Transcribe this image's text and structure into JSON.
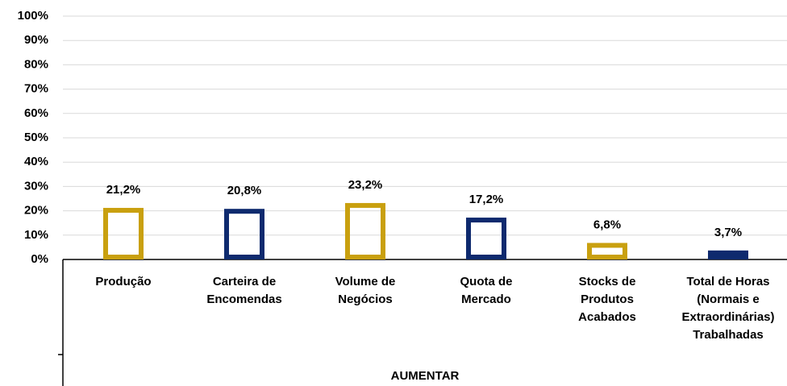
{
  "chart_data": {
    "type": "bar",
    "categories": [
      "Produção",
      "Carteira de\nEncomendas",
      "Volume de\nNegócios",
      "Quota de\nMercado",
      "Stocks de\nProdutos\nAcabados",
      "Total de Horas\n(Normais e\nExtraordinárias)\nTrabalhadas"
    ],
    "values": [
      21.2,
      20.8,
      23.2,
      17.2,
      6.8,
      3.7
    ],
    "value_labels": [
      "21,2%",
      "20,8%",
      "23,2%",
      "17,2%",
      "6,8%",
      "3,7%"
    ],
    "colors": [
      "#C9A00F",
      "#0E2A6E",
      "#C9A00F",
      "#0E2A6E",
      "#C9A00F",
      "#0E2A6E"
    ],
    "group_label": "AUMENTAR",
    "ylim": [
      0,
      100
    ],
    "yticks": [
      {
        "value": 0,
        "label": "0%"
      },
      {
        "value": 10,
        "label": "10%"
      },
      {
        "value": 20,
        "label": "20%"
      },
      {
        "value": 30,
        "label": "30%"
      },
      {
        "value": 40,
        "label": "40%"
      },
      {
        "value": 50,
        "label": "50%"
      },
      {
        "value": 60,
        "label": "60%"
      },
      {
        "value": 70,
        "label": "70%"
      },
      {
        "value": 80,
        "label": "80%"
      },
      {
        "value": 90,
        "label": "90%"
      },
      {
        "value": 100,
        "label": "100%"
      }
    ],
    "grid": true
  }
}
